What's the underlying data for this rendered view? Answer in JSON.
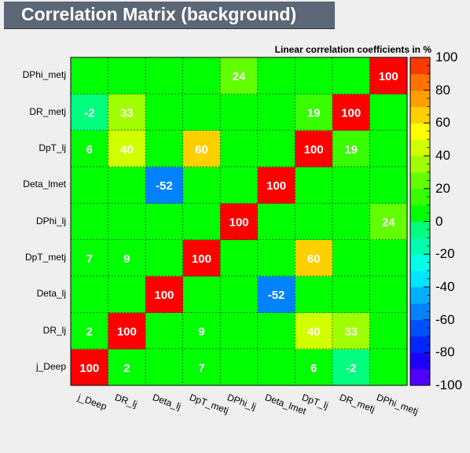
{
  "title": "Correlation Matrix (background)",
  "chart_data": {
    "type": "heatmap",
    "title": "Correlation Matrix (background)",
    "subtitle": "Linear correlation coefficients in %",
    "x_labels": [
      "j_Deep",
      "DR_lj",
      "Deta_lj",
      "DpT_metj",
      "DPhi_lj",
      "Deta_lmet",
      "DpT_lj",
      "DR_metj",
      "DPhi_metj"
    ],
    "y_labels": [
      "j_Deep",
      "DR_lj",
      "Deta_lj",
      "DpT_metj",
      "DPhi_lj",
      "Deta_lmet",
      "DpT_lj",
      "DR_metj",
      "DPhi_metj"
    ],
    "values": [
      [
        100,
        2,
        0,
        7,
        0,
        0,
        6,
        -2,
        0
      ],
      [
        2,
        100,
        0,
        9,
        0,
        0,
        40,
        33,
        0
      ],
      [
        0,
        0,
        100,
        0,
        0,
        -52,
        0,
        0,
        0
      ],
      [
        7,
        9,
        0,
        100,
        0,
        0,
        60,
        0,
        0
      ],
      [
        0,
        0,
        0,
        0,
        100,
        0,
        0,
        0,
        24
      ],
      [
        0,
        0,
        -52,
        0,
        0,
        100,
        0,
        0,
        0
      ],
      [
        6,
        40,
        0,
        60,
        0,
        0,
        100,
        19,
        0
      ],
      [
        -2,
        33,
        0,
        0,
        0,
        0,
        19,
        100,
        0
      ],
      [
        0,
        0,
        0,
        0,
        24,
        0,
        0,
        0,
        100
      ]
    ],
    "zlim": [
      -100,
      100
    ],
    "colorbar_ticks": [
      100,
      80,
      60,
      40,
      20,
      0,
      -20,
      -40,
      -60,
      -80,
      -100
    ],
    "grid": true
  }
}
